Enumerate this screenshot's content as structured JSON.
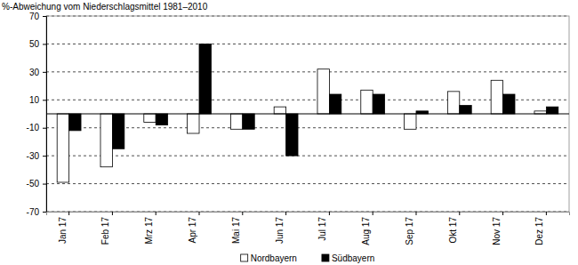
{
  "chart_data": {
    "type": "bar",
    "title": "%-Abweichung vom Niederschlagsmittel 1981–2010",
    "categories": [
      "Jan 17",
      "Feb 17",
      "Mrz 17",
      "Apr 17",
      "Mai 17",
      "Jun 17",
      "Jul 17",
      "Aug 17",
      "Sep 17",
      "Okt 17",
      "Nov 17",
      "Dez 17"
    ],
    "series": [
      {
        "name": "Nordbayern",
        "color": "#ffffff",
        "values": [
          -49,
          -38,
          -6,
          -14,
          -11,
          5,
          32,
          17,
          -11,
          16,
          24,
          2
        ]
      },
      {
        "name": "Südbayern",
        "color": "#000000",
        "values": [
          -12,
          -25,
          -8,
          50,
          -11,
          -30,
          14,
          14,
          2,
          6,
          14,
          5
        ]
      }
    ],
    "ylim": [
      -70,
      70
    ],
    "yticks": [
      -70,
      -50,
      -30,
      -10,
      10,
      30,
      50,
      70
    ],
    "grid": true,
    "legend": "bottom"
  }
}
